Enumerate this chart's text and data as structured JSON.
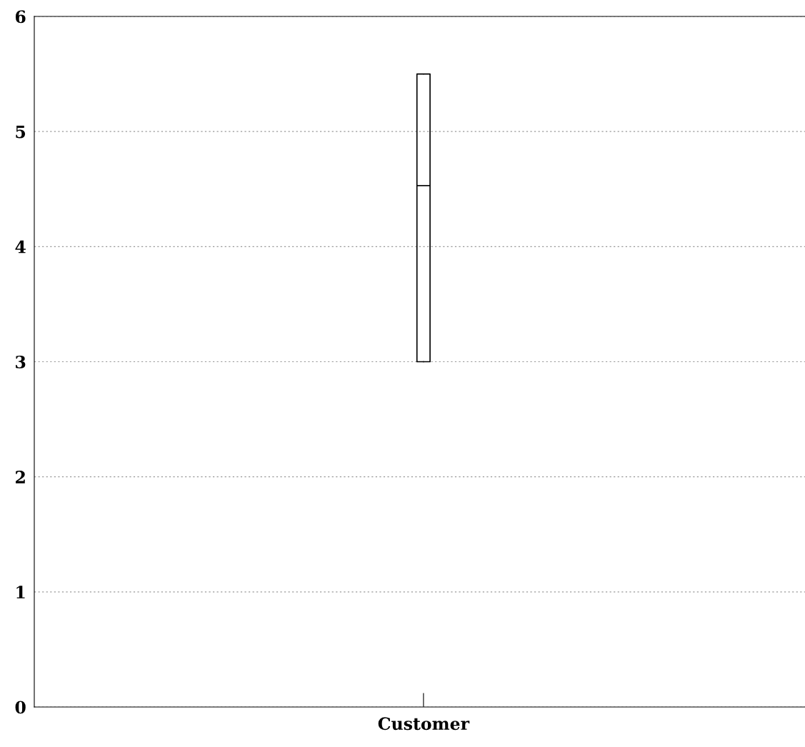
{
  "chart_data": {
    "type": "box",
    "categories": [
      "Customer"
    ],
    "boxes": [
      {
        "low": 3,
        "q1": 3,
        "median": 4.53,
        "q3": 5.5,
        "high": 5.5
      }
    ],
    "ylim": [
      0,
      6
    ],
    "yticks": [
      0,
      1,
      2,
      3,
      4,
      5,
      6
    ],
    "grid": "y",
    "color": "#000000"
  }
}
